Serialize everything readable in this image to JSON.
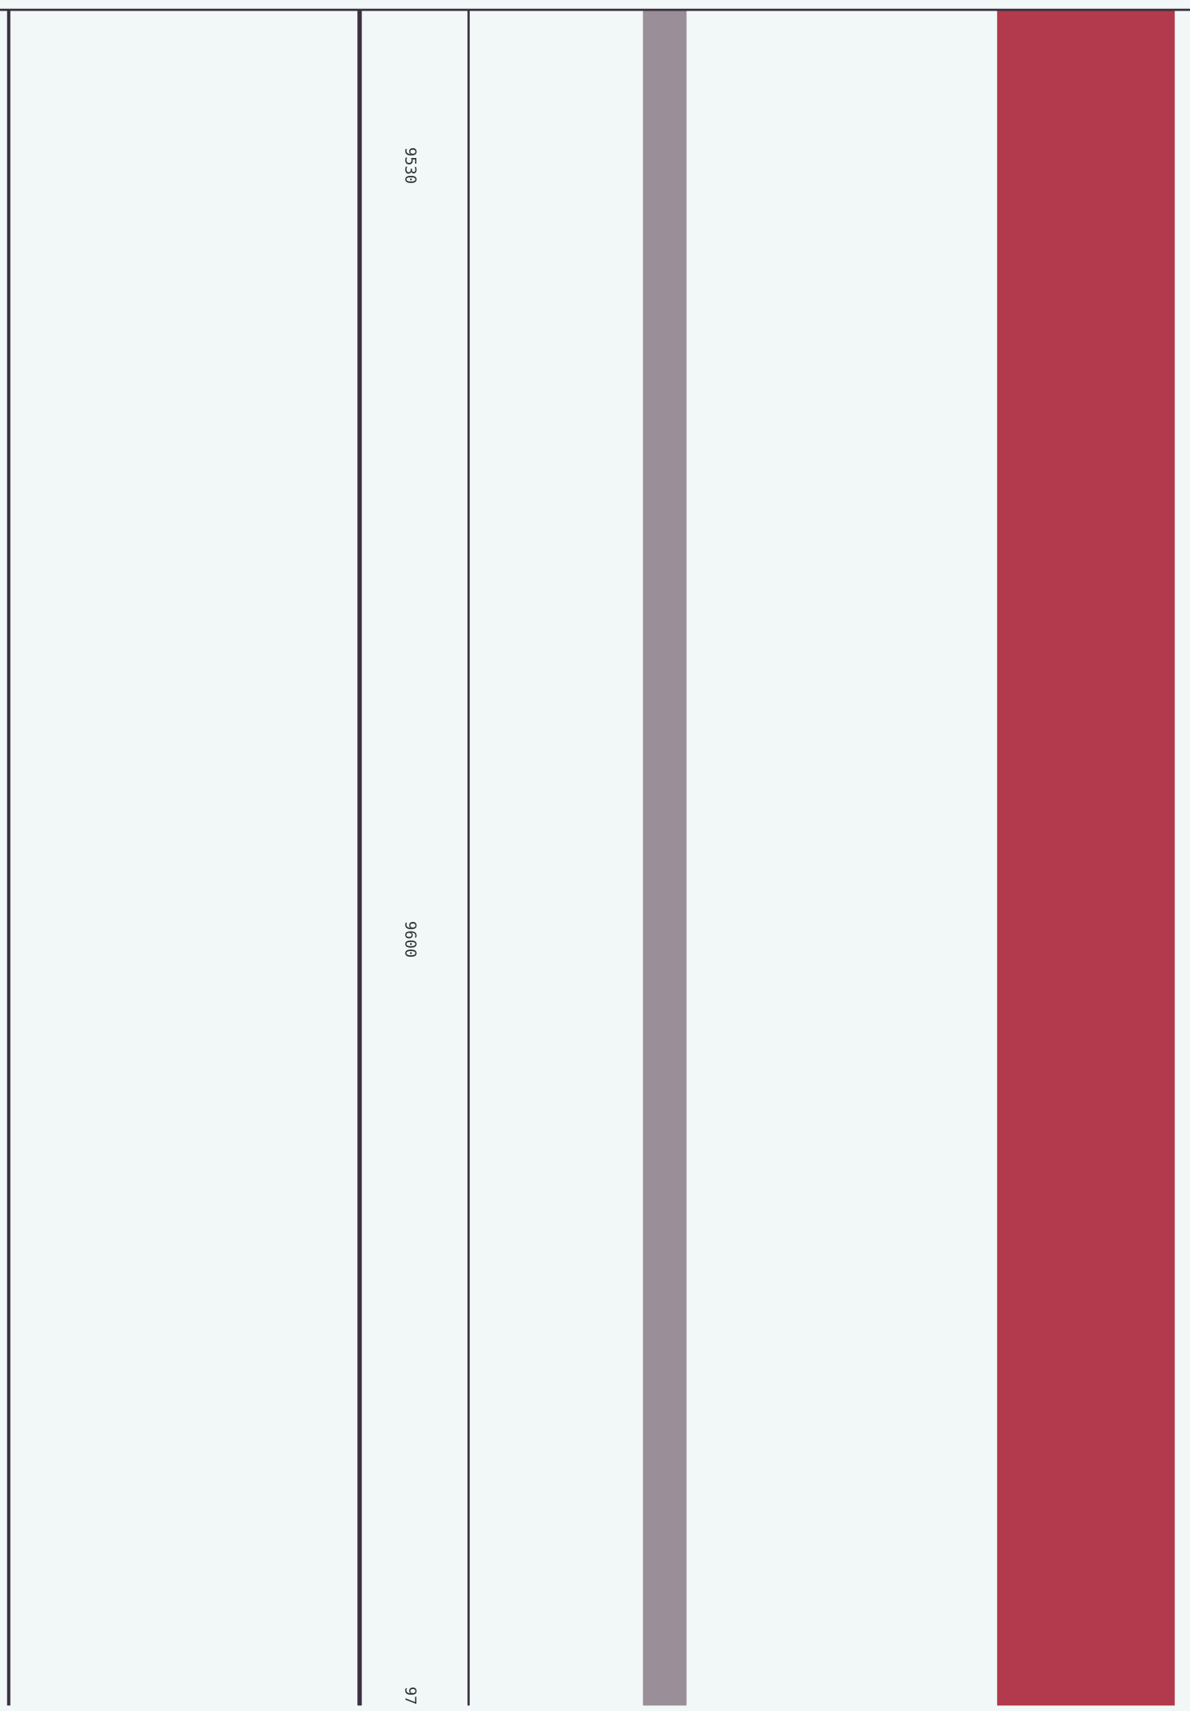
{
  "depth_labels": [
    "9530",
    "9600",
    "97"
  ]
}
